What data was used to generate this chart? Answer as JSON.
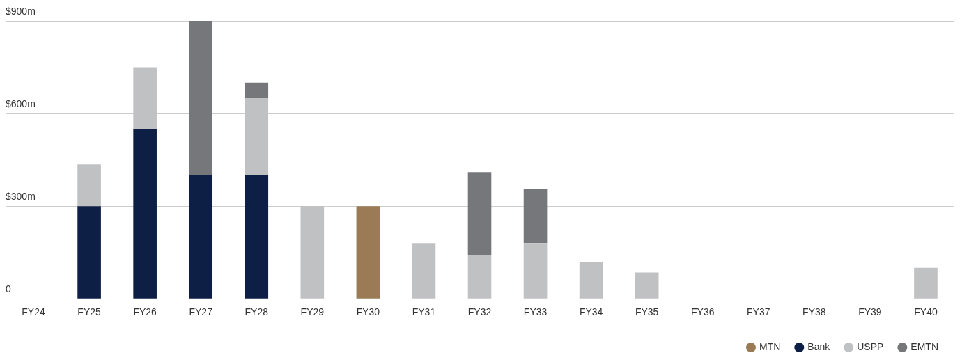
{
  "chart_data": {
    "type": "bar",
    "stacked": true,
    "categories": [
      "FY24",
      "FY25",
      "FY26",
      "FY27",
      "FY28",
      "FY29",
      "FY30",
      "FY31",
      "FY32",
      "FY33",
      "FY34",
      "FY35",
      "FY36",
      "FY37",
      "FY38",
      "FY39",
      "FY40"
    ],
    "series": [
      {
        "name": "MTN",
        "color": "#9a7b56",
        "values": [
          null,
          null,
          null,
          null,
          null,
          null,
          300,
          null,
          null,
          null,
          null,
          null,
          null,
          null,
          null,
          null,
          null
        ]
      },
      {
        "name": "Bank",
        "color": "#0e1f45",
        "values": [
          null,
          300,
          550,
          400,
          400,
          null,
          null,
          null,
          null,
          null,
          null,
          null,
          null,
          null,
          null,
          null,
          null
        ]
      },
      {
        "name": "USPP",
        "color": "#c0c1c3",
        "values": [
          null,
          135,
          200,
          null,
          250,
          300,
          null,
          180,
          140,
          180,
          120,
          85,
          null,
          null,
          null,
          null,
          100
        ]
      },
      {
        "name": "EMTN",
        "color": "#76777b",
        "values": [
          null,
          null,
          null,
          500,
          50,
          null,
          null,
          null,
          270,
          175,
          null,
          null,
          null,
          null,
          null,
          null,
          null
        ]
      }
    ],
    "ylim": [
      0,
      900
    ],
    "yticks": [
      0,
      {
        "value": 300,
        "label": "$300m"
      },
      {
        "value": 600,
        "label": "$600m"
      },
      {
        "value": 900,
        "label": "$900m"
      }
    ],
    "grid": "y",
    "legend": "bottom right"
  }
}
